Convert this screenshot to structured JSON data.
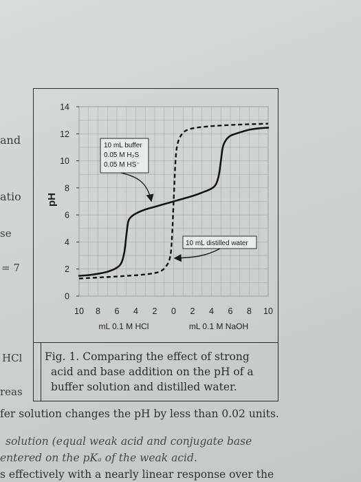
{
  "side_text": [
    "and",
    "atio",
    "se",
    "= 7",
    "HCl",
    "reas"
  ],
  "chart_data": {
    "type": "line",
    "ylabel": "pH",
    "y_ticks": [
      "14",
      "12",
      "10",
      "8",
      "6",
      "4",
      "2",
      "0"
    ],
    "x_ticks": [
      "10",
      "8",
      "6",
      "4",
      "2",
      "0",
      "2",
      "4",
      "6",
      "8",
      "10"
    ],
    "xlabel_left": "mL 0.1 M HCl",
    "xlabel_right": "mL 0.1 M NaOH",
    "ylim": [
      0,
      14
    ],
    "xlim": [
      -10,
      10
    ],
    "grid": true,
    "annotations": [
      {
        "lines": [
          "10 mL buffer",
          "0.05 M H₂S",
          "0.05 M HS⁻"
        ]
      },
      {
        "lines": [
          "10 mL distilled water"
        ]
      }
    ],
    "series": [
      {
        "style": "solid",
        "x": [
          -10,
          -9,
          -8,
          -7,
          -6,
          -5.5,
          -5.2,
          -5,
          -4.8,
          -4.5,
          -4,
          -3,
          -2,
          -1,
          0,
          1,
          2,
          3,
          4,
          4.5,
          4.8,
          5,
          5.2,
          5.5,
          6,
          7,
          8,
          9,
          10
        ],
        "y": [
          1.5,
          1.55,
          1.65,
          1.8,
          2.1,
          2.5,
          3.3,
          4.5,
          5.5,
          5.85,
          6.1,
          6.4,
          6.6,
          6.8,
          7.0,
          7.2,
          7.4,
          7.65,
          7.95,
          8.3,
          9.0,
          10.0,
          11.0,
          11.5,
          11.85,
          12.1,
          12.3,
          12.4,
          12.45
        ]
      },
      {
        "style": "dashed",
        "x": [
          -10,
          -6,
          -3,
          -1.5,
          -0.8,
          -0.4,
          -0.2,
          0,
          0.2,
          0.4,
          0.8,
          1.5,
          3,
          6,
          10
        ],
        "y": [
          1.3,
          1.45,
          1.6,
          1.8,
          2.2,
          2.8,
          4.0,
          7.0,
          10.0,
          11.2,
          11.9,
          12.3,
          12.5,
          12.65,
          12.75
        ]
      }
    ]
  },
  "caption": {
    "lines": [
      "Fig. 1. Comparing the effect of strong",
      "acid and base addition on the pH of a",
      "buffer solution and distilled water."
    ]
  },
  "bottom_text": [
    {
      "text": "fer solution changes the pH by less than 0.02 units.",
      "italic": false
    },
    {
      "text": "solution (equal weak acid and conjugate base",
      "italic": true
    },
    {
      "text": "entered on the pKₐ of the weak acid.",
      "italic": true
    },
    {
      "text": "s effectively with a nearly linear response over the",
      "italic": false
    }
  ]
}
